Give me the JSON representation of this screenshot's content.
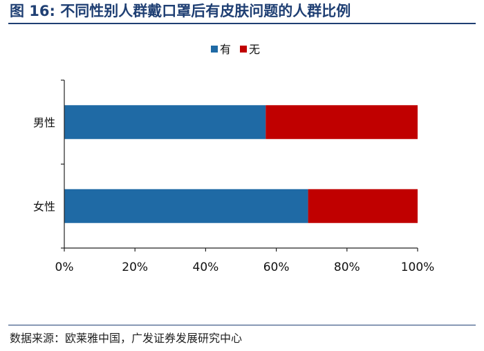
{
  "figure_title": "图 16: 不同性别人群戴口罩后有皮肤问题的人群比例",
  "source_note": "数据来源：欧莱雅中国，广发证券发展研究中心",
  "chart_data": {
    "type": "bar",
    "orientation": "horizontal",
    "stacked": true,
    "title": "",
    "xlabel": "",
    "ylabel": "",
    "categories": [
      "男性",
      "女性"
    ],
    "series": [
      {
        "name": "有",
        "color": "#1f6aa5",
        "values": [
          57,
          69
        ]
      },
      {
        "name": "无",
        "color": "#c00000",
        "values": [
          43,
          31
        ]
      }
    ],
    "x_ticks": [
      "0%",
      "20%",
      "40%",
      "60%",
      "80%",
      "100%"
    ],
    "xlim": [
      0,
      100
    ],
    "legend_position": "top",
    "grid": false
  }
}
